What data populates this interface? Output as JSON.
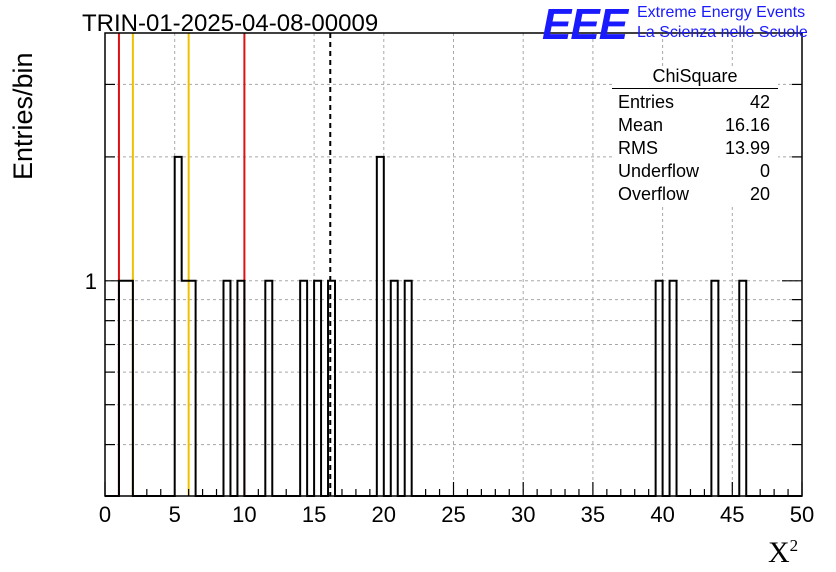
{
  "title": "TRIN-01-2025-04-08-00009",
  "logo": {
    "mark": "EEE",
    "line1": "Extreme Energy Events",
    "line2": "La Scienza nelle Scuole",
    "color": "#1a1aff"
  },
  "stats": {
    "name": "ChiSquare",
    "rows": [
      {
        "label": "Entries",
        "value": "42"
      },
      {
        "label": "Mean",
        "value": "16.16"
      },
      {
        "label": "RMS",
        "value": "13.99"
      },
      {
        "label": "Underflow",
        "value": "0"
      },
      {
        "label": "Overflow",
        "value": "20"
      }
    ]
  },
  "chart_data": {
    "type": "bar",
    "title": "TRIN-01-2025-04-08-00009",
    "xlabel": "X",
    "xlabel_sup": "2",
    "ylabel": "Entries/bin",
    "xlim": [
      0,
      50
    ],
    "ylim": [
      0.3,
      4
    ],
    "yscale": "log",
    "grid": true,
    "bin_width": 0.5,
    "x_ticks": [
      "0",
      "5",
      "10",
      "15",
      "20",
      "25",
      "30",
      "35",
      "40",
      "45",
      "50"
    ],
    "y_tick_labels": [
      {
        "value": 1,
        "label": "1"
      }
    ],
    "bins": [
      {
        "x": 1.0,
        "count": 1
      },
      {
        "x": 1.5,
        "count": 1
      },
      {
        "x": 5.0,
        "count": 2
      },
      {
        "x": 5.5,
        "count": 1
      },
      {
        "x": 6.0,
        "count": 1
      },
      {
        "x": 8.5,
        "count": 1
      },
      {
        "x": 9.5,
        "count": 1
      },
      {
        "x": 11.5,
        "count": 1
      },
      {
        "x": 14.0,
        "count": 1
      },
      {
        "x": 15.0,
        "count": 1
      },
      {
        "x": 16.0,
        "count": 1
      },
      {
        "x": 19.5,
        "count": 2
      },
      {
        "x": 20.5,
        "count": 1
      },
      {
        "x": 21.5,
        "count": 1
      },
      {
        "x": 39.5,
        "count": 1
      },
      {
        "x": 40.5,
        "count": 1
      },
      {
        "x": 43.5,
        "count": 1
      },
      {
        "x": 45.5,
        "count": 1
      }
    ],
    "vertical_lines": [
      {
        "x": 1.0,
        "color": "#dd1111",
        "style": "solid"
      },
      {
        "x": 2.0,
        "color": "#f0c000",
        "style": "solid"
      },
      {
        "x": 6.0,
        "color": "#f0c000",
        "style": "solid"
      },
      {
        "x": 10.0,
        "color": "#dd1111",
        "style": "solid"
      },
      {
        "x": 16.16,
        "color": "#000000",
        "style": "dashed"
      }
    ]
  }
}
